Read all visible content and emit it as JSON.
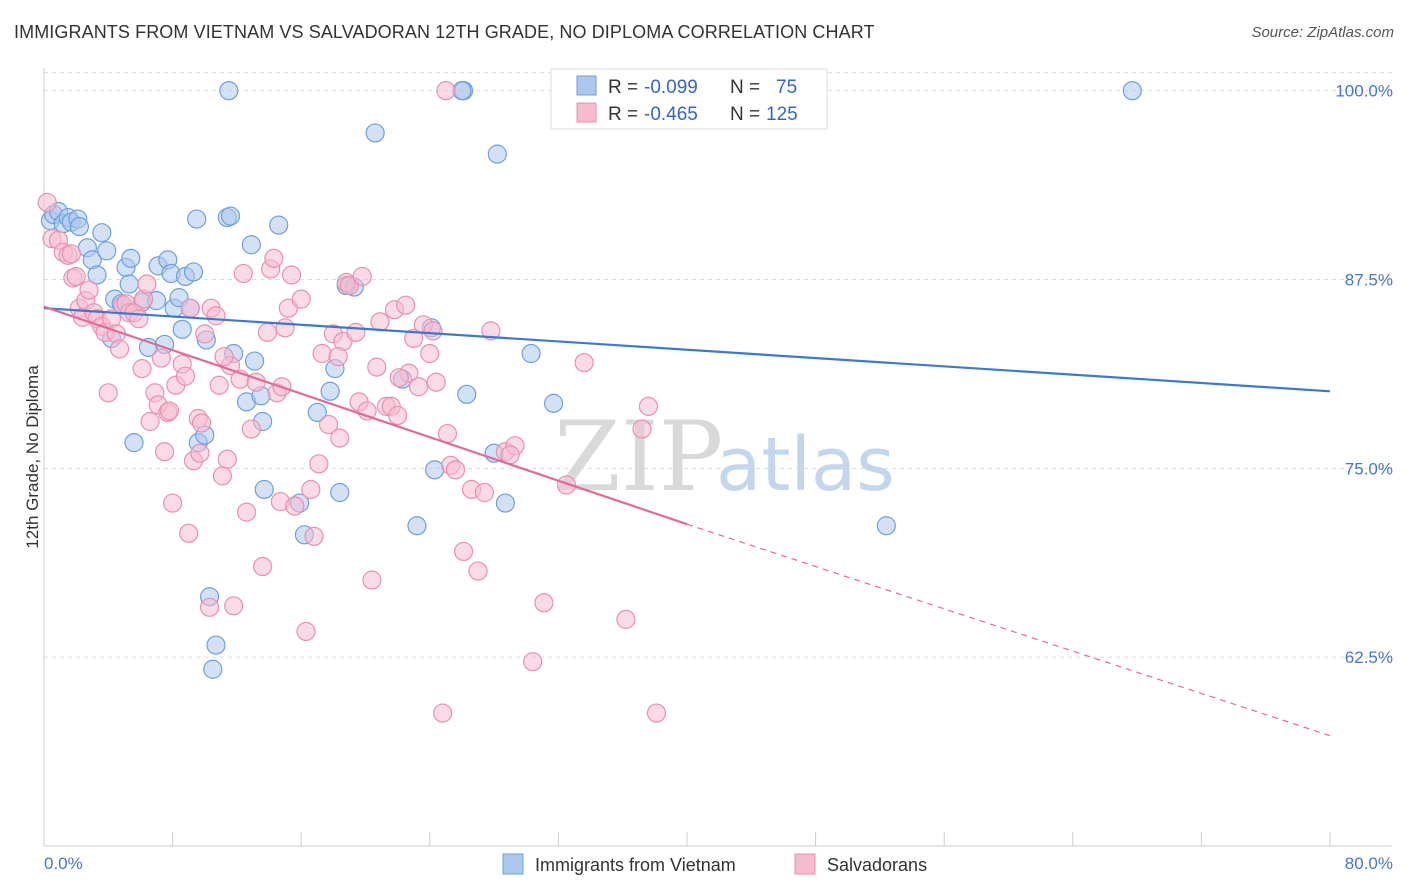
{
  "title": "IMMIGRANTS FROM VIETNAM VS SALVADORAN 12TH GRADE, NO DIPLOMA CORRELATION CHART",
  "source": "Source: ZipAtlas.com",
  "watermark": {
    "zip": "ZIP",
    "atlas": "atlas"
  },
  "colors": {
    "blue": "#6f9fdc",
    "blue_fill": "#adc8ee",
    "blue_line": "#3a78d4",
    "pink": "#e890b0",
    "pink_fill": "#f5bcd0",
    "pink_line": "#e06a98",
    "grid": "#dddddd",
    "axis_text": "#4477cc"
  },
  "legend_stats": [
    {
      "r_label": "R =",
      "r": "-0.099",
      "n_label": "N =",
      "n": "75"
    },
    {
      "r_label": "R =",
      "r": "-0.465",
      "n_label": "N =",
      "n": "125"
    }
  ],
  "chart_data": {
    "type": "scatter",
    "title": "IMMIGRANTS FROM VIETNAM VS SALVADORAN 12TH GRADE, NO DIPLOMA CORRELATION CHART",
    "xlabel": "",
    "ylabel": "12th Grade, No Diploma",
    "xlim": [
      0,
      80
    ],
    "ylim": [
      50,
      101.5
    ],
    "x_tick_labels": [
      "0.0%",
      "80.0%"
    ],
    "y_ticks": [
      62.5,
      75.0,
      87.5,
      100.0
    ],
    "y_tick_labels": [
      "62.5%",
      "75.0%",
      "87.5%",
      "100.0%"
    ],
    "grid": true,
    "legend_position": "bottom",
    "series": [
      {
        "name": "Immigrants from Vietnam",
        "color": "#6f9fdc",
        "trend": {
          "x0": 0,
          "y0": 85.6,
          "x1": 80,
          "y1": 80.1
        },
        "points": [
          [
            0.4,
            91.4
          ],
          [
            0.6,
            91.8
          ],
          [
            0.9,
            92.0
          ],
          [
            1.2,
            91.2
          ],
          [
            1.5,
            91.6
          ],
          [
            1.7,
            91.3
          ],
          [
            2.1,
            91.5
          ],
          [
            2.2,
            91.0
          ],
          [
            2.7,
            89.6
          ],
          [
            3.0,
            88.8
          ],
          [
            3.3,
            87.8
          ],
          [
            3.6,
            90.6
          ],
          [
            3.9,
            89.4
          ],
          [
            4.2,
            83.6
          ],
          [
            4.4,
            86.2
          ],
          [
            4.8,
            85.9
          ],
          [
            5.1,
            88.3
          ],
          [
            5.3,
            87.2
          ],
          [
            5.4,
            88.9
          ],
          [
            5.6,
            76.7
          ],
          [
            6.1,
            86.0
          ],
          [
            6.5,
            83.0
          ],
          [
            7.0,
            86.1
          ],
          [
            7.1,
            88.4
          ],
          [
            7.5,
            83.2
          ],
          [
            7.7,
            88.8
          ],
          [
            7.9,
            87.9
          ],
          [
            8.1,
            85.6
          ],
          [
            8.4,
            86.3
          ],
          [
            8.6,
            84.2
          ],
          [
            8.8,
            87.7
          ],
          [
            9.1,
            85.6
          ],
          [
            9.3,
            88.0
          ],
          [
            9.6,
            76.7
          ],
          [
            9.5,
            91.5
          ],
          [
            10.0,
            77.2
          ],
          [
            10.1,
            83.5
          ],
          [
            10.3,
            66.5
          ],
          [
            10.7,
            63.3
          ],
          [
            10.5,
            61.7
          ],
          [
            11.4,
            91.6
          ],
          [
            11.6,
            91.7
          ],
          [
            11.5,
            100.0
          ],
          [
            11.8,
            82.6
          ],
          [
            12.6,
            79.4
          ],
          [
            12.9,
            89.8
          ],
          [
            13.1,
            82.1
          ],
          [
            13.5,
            79.8
          ],
          [
            13.6,
            78.1
          ],
          [
            13.7,
            73.6
          ],
          [
            14.6,
            91.1
          ],
          [
            15.9,
            72.7
          ],
          [
            16.2,
            70.6
          ],
          [
            17.0,
            78.7
          ],
          [
            17.8,
            80.1
          ],
          [
            18.1,
            81.6
          ],
          [
            18.4,
            73.4
          ],
          [
            18.8,
            87.1
          ],
          [
            19.3,
            87.0
          ],
          [
            20.6,
            97.2
          ],
          [
            22.3,
            80.9
          ],
          [
            23.2,
            71.2
          ],
          [
            24.1,
            84.3
          ],
          [
            24.3,
            74.9
          ],
          [
            26.1,
            100.0
          ],
          [
            26.3,
            79.9
          ],
          [
            28.2,
            95.8
          ],
          [
            28.7,
            72.7
          ],
          [
            30.3,
            82.6
          ],
          [
            31.7,
            79.3
          ],
          [
            36.6,
            100.0
          ],
          [
            52.4,
            71.2
          ],
          [
            67.7,
            100.0
          ],
          [
            26.0,
            100.0
          ],
          [
            28.0,
            76.0
          ]
        ]
      },
      {
        "name": "Salvadorans",
        "color": "#e890b0",
        "trend": {
          "x0": 0,
          "y0": 85.7,
          "x1": 40,
          "y1": 71.3
        },
        "trend_dashed": {
          "x0": 40,
          "y0": 71.3,
          "x1": 80,
          "y1": 57.3
        },
        "points": [
          [
            0.2,
            92.6
          ],
          [
            0.5,
            90.2
          ],
          [
            0.9,
            90.1
          ],
          [
            1.2,
            89.3
          ],
          [
            1.5,
            89.1
          ],
          [
            1.7,
            89.2
          ],
          [
            1.8,
            87.6
          ],
          [
            2.0,
            87.7
          ],
          [
            2.2,
            85.6
          ],
          [
            2.4,
            85.0
          ],
          [
            2.6,
            86.1
          ],
          [
            2.8,
            86.8
          ],
          [
            3.1,
            85.3
          ],
          [
            3.3,
            84.9
          ],
          [
            3.6,
            84.4
          ],
          [
            3.8,
            84.0
          ],
          [
            4.0,
            80.0
          ],
          [
            4.2,
            84.9
          ],
          [
            4.5,
            83.9
          ],
          [
            4.7,
            82.9
          ],
          [
            4.9,
            85.8
          ],
          [
            5.1,
            85.9
          ],
          [
            5.3,
            85.3
          ],
          [
            5.6,
            85.3
          ],
          [
            5.9,
            84.9
          ],
          [
            6.1,
            81.6
          ],
          [
            6.2,
            86.2
          ],
          [
            6.4,
            87.2
          ],
          [
            6.6,
            78.1
          ],
          [
            6.9,
            80.0
          ],
          [
            7.1,
            79.2
          ],
          [
            7.3,
            82.3
          ],
          [
            7.5,
            76.1
          ],
          [
            7.7,
            78.7
          ],
          [
            7.8,
            78.8
          ],
          [
            8.0,
            72.7
          ],
          [
            8.2,
            80.5
          ],
          [
            8.6,
            81.9
          ],
          [
            8.8,
            81.1
          ],
          [
            9.0,
            70.7
          ],
          [
            9.1,
            85.6
          ],
          [
            9.3,
            75.5
          ],
          [
            9.6,
            78.3
          ],
          [
            9.8,
            78.0
          ],
          [
            10.0,
            83.9
          ],
          [
            10.3,
            65.8
          ],
          [
            10.4,
            85.6
          ],
          [
            10.7,
            85.1
          ],
          [
            10.9,
            80.5
          ],
          [
            11.1,
            74.5
          ],
          [
            11.4,
            75.6
          ],
          [
            11.6,
            81.8
          ],
          [
            11.8,
            65.9
          ],
          [
            12.2,
            80.9
          ],
          [
            12.4,
            87.9
          ],
          [
            12.6,
            72.1
          ],
          [
            12.9,
            77.6
          ],
          [
            13.2,
            80.7
          ],
          [
            13.6,
            68.5
          ],
          [
            13.9,
            84.0
          ],
          [
            14.1,
            88.2
          ],
          [
            14.3,
            88.9
          ],
          [
            14.5,
            80.0
          ],
          [
            14.7,
            72.8
          ],
          [
            15.0,
            84.3
          ],
          [
            15.2,
            85.6
          ],
          [
            15.4,
            87.8
          ],
          [
            15.6,
            72.5
          ],
          [
            16.0,
            86.2
          ],
          [
            16.3,
            64.2
          ],
          [
            16.6,
            73.6
          ],
          [
            16.8,
            70.5
          ],
          [
            17.1,
            75.3
          ],
          [
            17.3,
            82.6
          ],
          [
            17.7,
            77.9
          ],
          [
            18.0,
            83.9
          ],
          [
            18.4,
            77.0
          ],
          [
            18.6,
            83.4
          ],
          [
            18.8,
            87.3
          ],
          [
            19.0,
            87.1
          ],
          [
            19.4,
            84.0
          ],
          [
            19.6,
            79.4
          ],
          [
            19.8,
            87.7
          ],
          [
            20.1,
            78.8
          ],
          [
            20.4,
            67.6
          ],
          [
            20.7,
            81.7
          ],
          [
            20.9,
            84.7
          ],
          [
            21.3,
            79.1
          ],
          [
            21.6,
            79.1
          ],
          [
            21.8,
            85.5
          ],
          [
            22.0,
            78.5
          ],
          [
            22.5,
            85.8
          ],
          [
            22.7,
            81.3
          ],
          [
            23.0,
            83.6
          ],
          [
            23.3,
            80.4
          ],
          [
            23.6,
            84.5
          ],
          [
            24.0,
            82.6
          ],
          [
            24.2,
            84.1
          ],
          [
            24.4,
            80.7
          ],
          [
            24.8,
            58.8
          ],
          [
            25.1,
            77.3
          ],
          [
            25.3,
            75.2
          ],
          [
            25.6,
            74.9
          ],
          [
            26.1,
            69.5
          ],
          [
            26.6,
            73.6
          ],
          [
            27.0,
            68.2
          ],
          [
            27.4,
            73.4
          ],
          [
            27.8,
            84.1
          ],
          [
            28.7,
            76.1
          ],
          [
            29.3,
            76.5
          ],
          [
            30.4,
            62.2
          ],
          [
            31.1,
            66.1
          ],
          [
            32.5,
            73.9
          ],
          [
            33.6,
            82.0
          ],
          [
            36.2,
            65.0
          ],
          [
            37.2,
            77.6
          ],
          [
            37.6,
            79.1
          ],
          [
            38.1,
            58.8
          ],
          [
            25.0,
            100.0
          ],
          [
            29.0,
            75.9
          ],
          [
            9.7,
            76.0
          ],
          [
            11.2,
            82.4
          ],
          [
            14.8,
            80.4
          ],
          [
            18.3,
            82.4
          ],
          [
            22.1,
            81.0
          ]
        ]
      }
    ]
  }
}
